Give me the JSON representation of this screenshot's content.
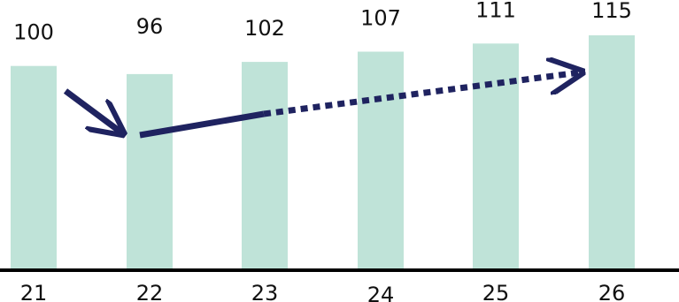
{
  "chart_data": {
    "type": "bar",
    "categories": [
      "21",
      "22",
      "23",
      "24",
      "25",
      "26"
    ],
    "values": [
      100,
      96,
      102,
      107,
      111,
      115
    ],
    "data_labels": [
      "100",
      "96",
      "102",
      "107",
      "111",
      "115"
    ],
    "title": "",
    "xlabel": "",
    "ylabel": "",
    "ylim": [
      0,
      115
    ],
    "grid": false,
    "colors": {
      "bar": "#bfe3d8",
      "axis": "#000000",
      "arrow": "#1f2360",
      "text": "#111111"
    },
    "annotations": [
      {
        "type": "arrow",
        "style": "solid",
        "from_category": "21",
        "to_category": "22"
      },
      {
        "type": "trend-arrow",
        "solid_from_category": "22",
        "solid_to_category": "23",
        "dotted_from_category": "23",
        "dotted_to_category": "26"
      }
    ]
  }
}
